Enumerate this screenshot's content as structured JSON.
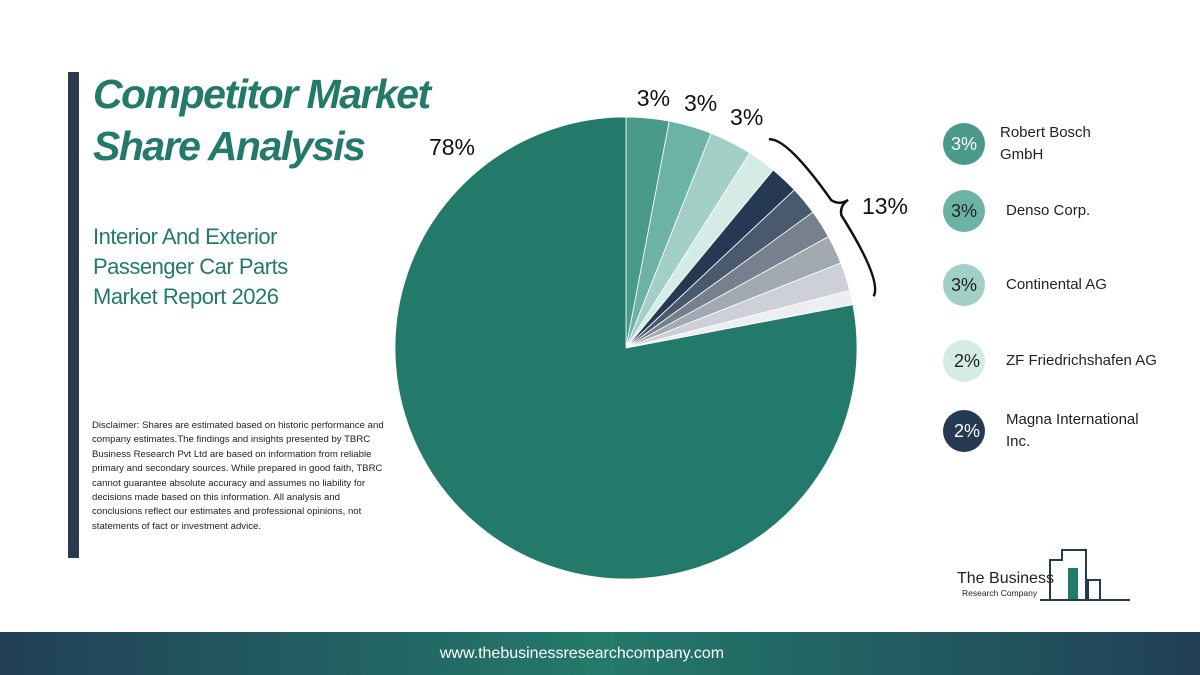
{
  "chart_data": {
    "type": "pie",
    "title": "Competitor Market Share Analysis",
    "subtitle": "Interior And Exterior Passenger Car Parts Market Report 2026",
    "categories": [
      "Robert Bosch GmbH",
      "Denso Corp.",
      "Continental AG",
      "ZF Friedrichshafen AG",
      "Magna International Inc.",
      null,
      null,
      null,
      null,
      null,
      null
    ],
    "values": [
      3,
      3,
      3,
      2,
      2,
      2,
      2,
      2,
      2,
      1,
      78
    ],
    "value_labels": [
      "3%",
      "3%",
      "3%",
      "2%",
      "2%",
      null,
      null,
      null,
      null,
      null,
      "78%"
    ],
    "colors": [
      "#4a9a8a",
      "#6db3a5",
      "#a3d0c6",
      "#d5ebe6",
      "#253a52",
      "#4a5a6e",
      "#76808f",
      "#a3a9b3",
      "#cdd0d6",
      "#eceef1",
      "#237a6a"
    ],
    "group_annotation": {
      "value": 13,
      "label": "13%"
    },
    "disclaimer": "Disclaimer: Shares are estimated based on historic performance and company estimates.The findings and insights presented by TBRC Business Research Pvt Ltd are based on information from reliable primary and secondary sources. While prepared in good faith, TBRC cannot guarantee absolute accuracy and assumes no liability for decisions made based on this information. All analysis and conclusions reflect our estimates and professional opinions, not statements of fact or investment advice.",
    "logo_line1": "The Business",
    "logo_line2": "Research Company",
    "url": "www.thebusinessresearchcompany.com"
  }
}
